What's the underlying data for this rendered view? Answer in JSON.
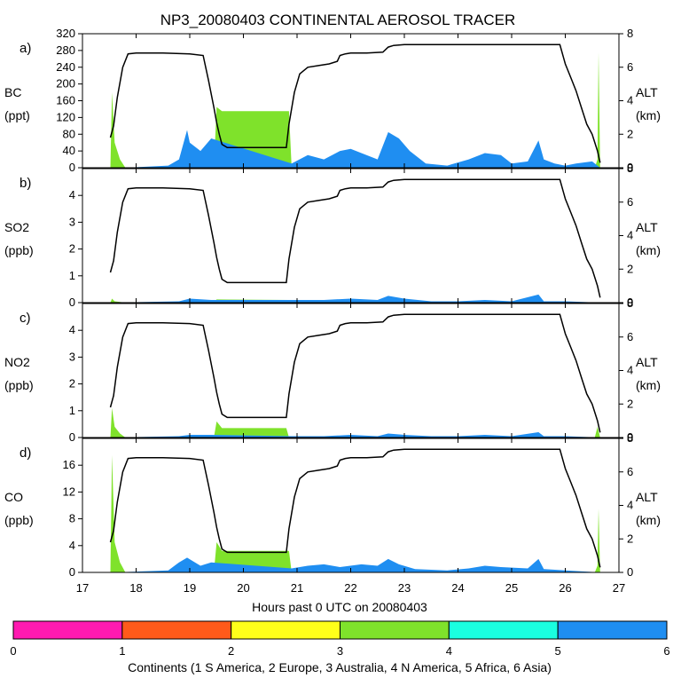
{
  "chart_data": {
    "type": "area",
    "title": "NP3_20080403 CONTINENTAL AEROSOL TRACER",
    "xlabel": "Hours past 0 UTC on 20080403",
    "xlim": [
      17,
      27
    ],
    "xticks": [
      "17",
      "18",
      "19",
      "20",
      "21",
      "22",
      "23",
      "24",
      "25",
      "26",
      "27"
    ],
    "right_axis": {
      "label": "ALT",
      "unit": "(km)",
      "ylim": [
        0,
        8
      ],
      "ticks": [
        "0",
        "2",
        "4",
        "6",
        "8"
      ]
    },
    "altitude_km": {
      "x": [
        17.52,
        17.58,
        17.65,
        17.75,
        17.85,
        18.0,
        18.5,
        19.0,
        19.25,
        19.35,
        19.45,
        19.5,
        19.55,
        19.6,
        19.7,
        20.0,
        20.5,
        20.8,
        20.85,
        20.95,
        21.05,
        21.2,
        21.4,
        21.6,
        21.75,
        21.8,
        21.9,
        22.0,
        22.3,
        22.6,
        22.7,
        22.8,
        23.0,
        24.0,
        25.0,
        25.9,
        26.0,
        26.1,
        26.2,
        26.3,
        26.4,
        26.5,
        26.6,
        26.65
      ],
      "y": [
        1.8,
        2.5,
        4.2,
        6.0,
        6.8,
        6.85,
        6.85,
        6.8,
        6.7,
        5.2,
        3.6,
        2.7,
        2.0,
        1.4,
        1.2,
        1.2,
        1.2,
        1.2,
        2.6,
        4.5,
        5.6,
        6.0,
        6.1,
        6.2,
        6.35,
        6.7,
        6.8,
        6.85,
        6.85,
        6.9,
        7.2,
        7.3,
        7.35,
        7.35,
        7.35,
        7.35,
        6.2,
        5.4,
        4.6,
        3.6,
        2.6,
        2.0,
        1.0,
        0.3
      ]
    },
    "panels": [
      {
        "id": "a)",
        "label": "BC",
        "unit": "(ppt)",
        "ylim": [
          0,
          320
        ],
        "yticks": [
          "0",
          "40",
          "80",
          "120",
          "160",
          "200",
          "240",
          "280",
          "320"
        ],
        "series": [
          {
            "name": "N America",
            "color": "#7fe22b",
            "x": [
              17.52,
              17.55,
              17.6,
              17.7,
              17.8,
              19.45,
              19.5,
              19.6,
              20.0,
              20.5,
              20.85,
              20.9,
              26.55,
              26.6,
              26.62,
              26.65
            ],
            "values": [
              0,
              180,
              60,
              20,
              0,
              0,
              145,
              135,
              135,
              135,
              135,
              0,
              0,
              20,
              275,
              0
            ]
          },
          {
            "name": "Asia",
            "color": "#1f8ef1",
            "x": [
              17.6,
              17.8,
              18.6,
              18.8,
              18.95,
              19.0,
              19.2,
              19.4,
              20.9,
              21.2,
              21.5,
              21.8,
              22.0,
              22.2,
              22.5,
              22.7,
              22.9,
              23.1,
              23.4,
              23.8,
              24.2,
              24.5,
              24.8,
              25.0,
              25.3,
              25.5,
              25.6,
              25.8,
              26.0,
              26.2,
              26.5,
              26.65
            ],
            "values": [
              0,
              0,
              5,
              20,
              90,
              60,
              40,
              70,
              10,
              30,
              20,
              40,
              45,
              35,
              20,
              85,
              70,
              40,
              10,
              5,
              20,
              35,
              30,
              10,
              15,
              65,
              20,
              10,
              5,
              10,
              15,
              0
            ]
          }
        ]
      },
      {
        "id": "b)",
        "label": "SO2",
        "unit": "(ppb)",
        "ylim": [
          0,
          5
        ],
        "yticks": [
          "0",
          "1",
          "2",
          "3",
          "4"
        ],
        "series": [
          {
            "name": "N America",
            "color": "#7fe22b",
            "x": [
              17.52,
              17.55,
              17.6,
              17.8,
              19.45,
              19.5,
              20.85,
              20.9,
              26.55,
              26.65
            ],
            "values": [
              0,
              0.15,
              0.05,
              0,
              0,
              0.12,
              0.1,
              0,
              0,
              0
            ]
          },
          {
            "name": "Asia",
            "color": "#1f8ef1",
            "x": [
              17.6,
              18.8,
              19.0,
              19.4,
              20.9,
              21.5,
              22.0,
              22.5,
              22.7,
              23.0,
              23.5,
              24.0,
              24.5,
              25.0,
              25.5,
              25.6,
              26.0,
              26.65
            ],
            "values": [
              0,
              0.05,
              0.15,
              0.1,
              0.1,
              0.1,
              0.15,
              0.1,
              0.25,
              0.15,
              0.05,
              0.05,
              0.1,
              0.05,
              0.3,
              0.05,
              0.05,
              0
            ]
          }
        ]
      },
      {
        "id": "c)",
        "label": "NO2",
        "unit": "(ppb)",
        "ylim": [
          0,
          5
        ],
        "yticks": [
          "0",
          "1",
          "2",
          "3",
          "4"
        ],
        "series": [
          {
            "name": "N America",
            "color": "#7fe22b",
            "x": [
              17.52,
              17.55,
              17.6,
              17.7,
              17.8,
              19.45,
              19.5,
              19.6,
              20.8,
              20.85,
              26.55,
              26.6,
              26.65
            ],
            "values": [
              0,
              1.1,
              0.4,
              0.15,
              0,
              0,
              0.6,
              0.35,
              0.35,
              0,
              0,
              0.4,
              0
            ]
          },
          {
            "name": "Asia",
            "color": "#1f8ef1",
            "x": [
              17.6,
              18.8,
              19.0,
              19.4,
              20.9,
              21.5,
              22.0,
              22.5,
              22.7,
              23.0,
              23.5,
              24.0,
              24.5,
              25.0,
              25.5,
              25.6,
              26.0,
              26.65
            ],
            "values": [
              0,
              0.05,
              0.1,
              0.1,
              0.05,
              0.05,
              0.1,
              0.05,
              0.15,
              0.1,
              0.05,
              0.05,
              0.1,
              0.05,
              0.2,
              0.05,
              0.05,
              0
            ]
          }
        ]
      },
      {
        "id": "d)",
        "label": "CO",
        "unit": "(ppb)",
        "ylim": [
          0,
          20
        ],
        "yticks": [
          "0",
          "4",
          "8",
          "12",
          "16"
        ],
        "series": [
          {
            "name": "N America",
            "color": "#7fe22b",
            "x": [
              17.52,
              17.55,
              17.6,
              17.7,
              17.8,
              19.45,
              19.5,
              19.6,
              20.0,
              20.5,
              20.85,
              20.9,
              26.55,
              26.6,
              26.62,
              26.65
            ],
            "values": [
              0,
              17.5,
              4.5,
              1.5,
              0,
              0,
              4.5,
              3.2,
              3.2,
              3.2,
              3.2,
              0,
              0,
              1,
              9.5,
              0
            ]
          },
          {
            "name": "Asia",
            "color": "#1f8ef1",
            "x": [
              17.6,
              18.6,
              18.8,
              18.95,
              19.2,
              19.4,
              20.9,
              21.2,
              21.5,
              21.8,
              22.2,
              22.5,
              22.7,
              22.9,
              23.2,
              23.8,
              24.2,
              24.5,
              24.8,
              25.3,
              25.5,
              25.6,
              26.0,
              26.65
            ],
            "values": [
              0,
              0.3,
              1.5,
              2.2,
              1,
              1.5,
              0.6,
              1,
              1.2,
              0.8,
              1.2,
              1,
              2,
              1.2,
              0.5,
              0.3,
              0.6,
              1,
              0.8,
              0.6,
              2,
              0.5,
              0.3,
              0
            ]
          }
        ]
      }
    ],
    "colorbar": {
      "colors": [
        "#ff1ab0",
        "#ff5a1a",
        "#ffff1a",
        "#7fe22b",
        "#1affe0",
        "#1f8ef1"
      ],
      "ticks": [
        "0",
        "1",
        "2",
        "3",
        "4",
        "5",
        "6"
      ],
      "label": "Continents (1 S America, 2 Europe, 3 Australia, 4 N America, 5 Africa, 6 Asia)"
    }
  }
}
